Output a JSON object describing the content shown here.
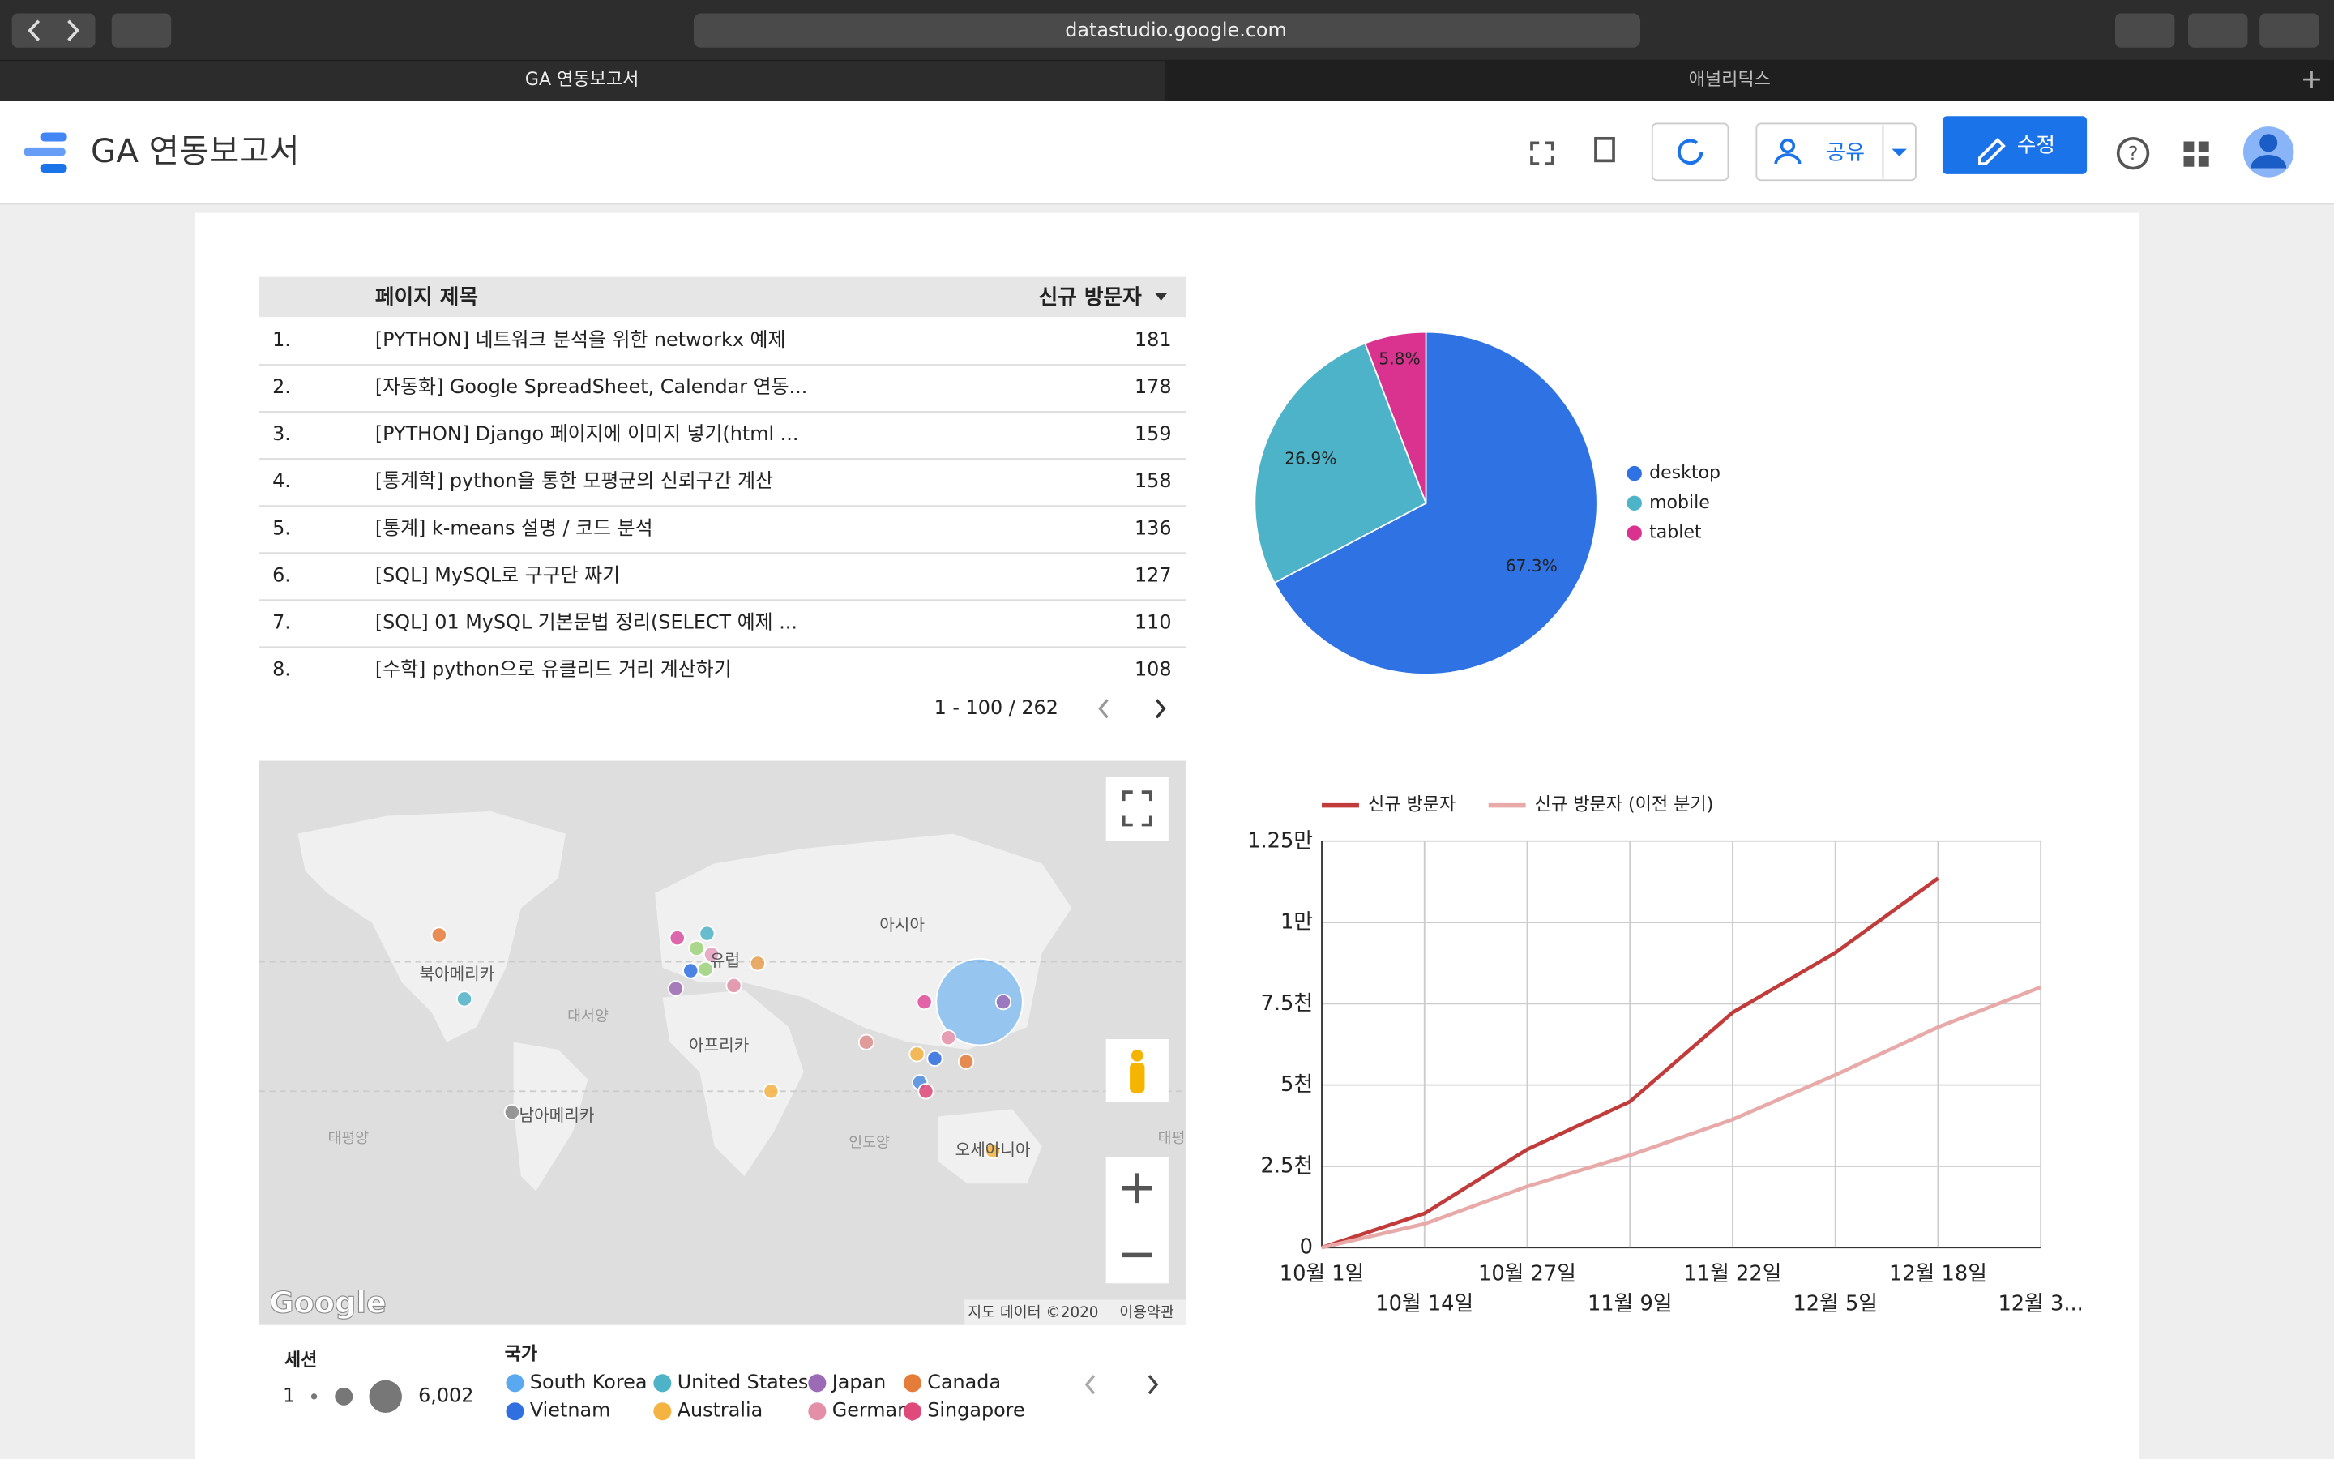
{
  "browser": {
    "url": "datastudio.google.com",
    "tabs": [
      "GA 연동보고서",
      "애널리틱스"
    ]
  },
  "header": {
    "title": "GA 연동보고서",
    "share": "공유",
    "edit": "수정"
  },
  "table": {
    "columns": [
      "페이지 제목",
      "신규 방문자"
    ],
    "rows": [
      [
        "1.",
        "[PYTHON] 네트워크 분석을 위한 networkx 예제",
        181
      ],
      [
        "2.",
        "[자동화] Google SpreadSheet, Calendar 연동...",
        178
      ],
      [
        "3.",
        "[PYTHON] Django 페이지에 이미지 넣기(html ...",
        159
      ],
      [
        "4.",
        "[통계학] python을 통한 모평균의 신뢰구간 계산",
        158
      ],
      [
        "5.",
        "[통계] k-means 설명 / 코드 분석",
        136
      ],
      [
        "6.",
        "[SQL] MySQL로 구구단 짜기",
        127
      ],
      [
        "7.",
        "[SQL] 01 MySQL 기본문법 정리(SELECT 예제 ...",
        110
      ],
      [
        "8.",
        "[수학] python으로 유클리드 거리 계산하기",
        108
      ]
    ],
    "pagination": "1 - 100 / 262"
  },
  "map": {
    "labels": [
      "북아메리카",
      "유럽",
      "아시아",
      "대서양",
      "아프리카",
      "남아메리카",
      "태평양",
      "인도양",
      "오세아니아",
      "태평"
    ],
    "logo": "Google",
    "attribution": "지도 데이터 ©2020",
    "terms": "이용약관",
    "size_legend": {
      "title": "세션",
      "min": "1",
      "max": "6,002"
    },
    "color_legend": {
      "title": "국가",
      "items": [
        {
          "name": "South Korea",
          "color": "#5aa9f0"
        },
        {
          "name": "United States",
          "color": "#4fb3c7"
        },
        {
          "name": "Japan",
          "color": "#9c6bb5"
        },
        {
          "name": "Canada",
          "color": "#e67c3a"
        },
        {
          "name": "Vietnam",
          "color": "#2f6fe0"
        },
        {
          "name": "Australia",
          "color": "#f5b342"
        },
        {
          "name": "Germany",
          "color": "#e48fa8"
        },
        {
          "name": "Singapore",
          "color": "#e04a7a"
        }
      ]
    }
  },
  "chart_data": [
    {
      "type": "pie",
      "categories": [
        "desktop",
        "mobile",
        "tablet"
      ],
      "values": [
        67.3,
        26.9,
        5.8
      ],
      "value_labels": [
        "67.3%",
        "26.9%",
        "5.8%"
      ],
      "colors": [
        "#2f72e4",
        "#4db3c8",
        "#d9338f"
      ],
      "legend": "right"
    },
    {
      "type": "line",
      "categories": [
        "10월 1일",
        "10월 14일",
        "10월 27일",
        "11월 9일",
        "11월 22일",
        "12월 5일",
        "12월 18일",
        "12월 3..."
      ],
      "series": [
        {
          "name": "신규 방문자",
          "color": "#c23b3b",
          "values": [
            0,
            1050,
            3020,
            4490,
            7230,
            9070,
            11360,
            null
          ]
        },
        {
          "name": "신규 방문자 (이전 분기)",
          "color": "#e8a9a9",
          "values": [
            0,
            730,
            1880,
            2840,
            3940,
            5310,
            6780,
            8010
          ]
        }
      ],
      "ylim": [
        0,
        12500
      ],
      "yticks": [
        0,
        {
          "value": 2500,
          "label": "2.5천"
        },
        {
          "value": 5000,
          "label": "5천"
        },
        {
          "value": 7500,
          "label": "7.5천"
        },
        {
          "value": 10000,
          "label": "1만"
        },
        {
          "value": 12500,
          "label": "1.25만"
        }
      ],
      "grid": true,
      "legend": "top"
    }
  ]
}
